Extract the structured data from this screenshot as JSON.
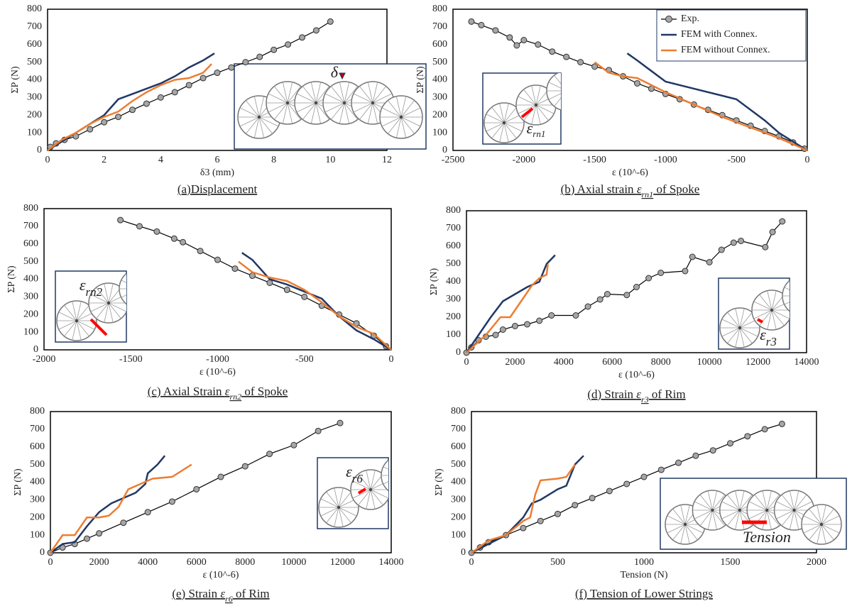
{
  "chart_data": [
    {
      "type": "line",
      "xlabel": "δ3 (mm)",
      "ylabel": "ΣP (N)",
      "caption": {
        "text": "(a)Displacement"
      },
      "inset_label": {
        "symbol": "δ"
      },
      "xlim": [
        0,
        12
      ],
      "xticks": [
        0,
        2,
        4,
        6,
        8,
        10,
        12
      ],
      "ylim": [
        0,
        800
      ],
      "yticks": [
        0,
        100,
        200,
        300,
        400,
        500,
        600,
        700,
        800
      ],
      "series": [
        {
          "color": "#a6a6a6",
          "marker": true,
          "x": [
            0.1,
            0.3,
            0.6,
            1,
            1.5,
            2,
            2.5,
            3,
            3.5,
            4,
            4.5,
            5,
            5.5,
            6,
            6.5,
            7,
            7.5,
            8,
            8.5,
            9,
            9.5,
            10
          ],
          "values": [
            20,
            40,
            60,
            80,
            120,
            160,
            190,
            230,
            265,
            300,
            330,
            370,
            410,
            440,
            470,
            500,
            530,
            570,
            600,
            640,
            680,
            730
          ]
        },
        {
          "color": "#203864",
          "x": [
            0,
            0.5,
            1,
            1.5,
            2,
            2.5,
            3,
            3.5,
            4,
            4.5,
            5,
            5.5,
            5.9
          ],
          "values": [
            0,
            50,
            100,
            150,
            200,
            290,
            320,
            350,
            380,
            420,
            470,
            510,
            550
          ]
        },
        {
          "color": "#ed7d31",
          "x": [
            0,
            0.5,
            1,
            1.5,
            2,
            2.5,
            3,
            3.5,
            4,
            4.5,
            5,
            5.5,
            5.8
          ],
          "values": [
            0,
            60,
            100,
            150,
            190,
            220,
            280,
            330,
            370,
            400,
            410,
            440,
            490
          ]
        }
      ]
    },
    {
      "type": "line",
      "xlabel": "ε (10^-6)",
      "ylabel": "ΣP (N)",
      "caption": {
        "text": "(b) Axial strain ",
        "symbol": "ε",
        "sub": "rn1",
        "tail": " of Spoke"
      },
      "inset_label": {
        "symbol": "ε",
        "sub": "rn1"
      },
      "legend": true,
      "xlim": [
        -2500,
        0
      ],
      "xticks": [
        -2500,
        -2000,
        -1500,
        -1000,
        -500,
        0
      ],
      "ylim": [
        0,
        800
      ],
      "yticks": [
        0,
        100,
        200,
        300,
        400,
        500,
        600,
        700,
        800
      ],
      "series": [
        {
          "name": "Exp.",
          "color": "#a6a6a6",
          "marker": true,
          "x": [
            -2370,
            -2300,
            -2200,
            -2100,
            -2050,
            -2000,
            -1900,
            -1800,
            -1700,
            -1600,
            -1500,
            -1400,
            -1300,
            -1200,
            -1100,
            -1000,
            -900,
            -800,
            -700,
            -600,
            -500,
            -400,
            -300,
            -200,
            -100,
            -20
          ],
          "values": [
            730,
            710,
            680,
            640,
            595,
            625,
            600,
            560,
            530,
            500,
            475,
            455,
            420,
            380,
            350,
            320,
            290,
            260,
            230,
            200,
            170,
            140,
            110,
            80,
            45,
            10
          ]
        },
        {
          "name": "FEM with Connex.",
          "color": "#203864",
          "x": [
            -1270,
            -1200,
            -1100,
            -1000,
            -800,
            -500,
            -300,
            -200,
            0
          ],
          "values": [
            550,
            510,
            450,
            390,
            350,
            290,
            170,
            100,
            0
          ]
        },
        {
          "name": "FEM without  Connex.",
          "color": "#ed7d31",
          "x": [
            -1500,
            -1400,
            -1300,
            -1200,
            -1000,
            -800,
            -600,
            -400,
            -200,
            0
          ],
          "values": [
            500,
            440,
            420,
            410,
            330,
            260,
            190,
            130,
            70,
            0
          ]
        }
      ]
    },
    {
      "type": "line",
      "xlabel": "ε (10^-6)",
      "ylabel": "ΣP (N)",
      "caption": {
        "text": "(c) Axial Strain ",
        "symbol": "ε",
        "sub": "rn2",
        "tail": " of Spoke"
      },
      "inset_label": {
        "symbol": "ε",
        "sub": "rn2"
      },
      "xlim": [
        -2000,
        0
      ],
      "xticks": [
        -2000,
        -1500,
        -1000,
        -500,
        0
      ],
      "ylim": [
        0,
        800
      ],
      "yticks": [
        0,
        100,
        200,
        300,
        400,
        500,
        600,
        700,
        800
      ],
      "series": [
        {
          "color": "#a6a6a6",
          "marker": true,
          "x": [
            -1560,
            -1450,
            -1350,
            -1250,
            -1200,
            -1100,
            -1000,
            -900,
            -800,
            -700,
            -600,
            -500,
            -400,
            -300,
            -200,
            -100,
            -30
          ],
          "values": [
            735,
            700,
            670,
            630,
            610,
            560,
            510,
            460,
            420,
            380,
            340,
            300,
            250,
            200,
            150,
            80,
            20
          ]
        },
        {
          "color": "#203864",
          "x": [
            -860,
            -800,
            -700,
            -600,
            -500,
            -400,
            -300,
            -200,
            -100,
            0
          ],
          "values": [
            550,
            510,
            400,
            370,
            330,
            290,
            190,
            110,
            60,
            0
          ]
        },
        {
          "color": "#ed7d31",
          "x": [
            -880,
            -800,
            -700,
            -600,
            -500,
            -400,
            -300,
            -200,
            -100,
            0
          ],
          "values": [
            500,
            440,
            410,
            390,
            340,
            270,
            190,
            130,
            90,
            0
          ]
        }
      ]
    },
    {
      "type": "line",
      "xlabel": "ε (10^-6)",
      "ylabel": "ΣP (N)",
      "caption": {
        "text": "(d) Strain ",
        "symbol": "ε",
        "sub": "r3",
        "tail": " of Rim"
      },
      "inset_label": {
        "symbol": "ε",
        "sub": "r3"
      },
      "xlim": [
        0,
        14000
      ],
      "xticks": [
        0,
        2000,
        4000,
        6000,
        8000,
        10000,
        12000,
        14000
      ],
      "ylim": [
        0,
        800
      ],
      "yticks": [
        0,
        100,
        200,
        300,
        400,
        500,
        600,
        700,
        800
      ],
      "series": [
        {
          "color": "#a6a6a6",
          "marker": true,
          "x": [
            0,
            200,
            500,
            800,
            1200,
            1500,
            2000,
            2500,
            3000,
            3500,
            4500,
            5000,
            5500,
            5800,
            6600,
            7000,
            7500,
            8000,
            9000,
            9300,
            10000,
            10500,
            11000,
            11300,
            12300,
            12600,
            13000
          ],
          "values": [
            0,
            30,
            70,
            90,
            100,
            130,
            150,
            160,
            180,
            210,
            210,
            260,
            300,
            330,
            325,
            370,
            420,
            450,
            460,
            540,
            510,
            580,
            620,
            630,
            595,
            680,
            740
          ]
        },
        {
          "color": "#203864",
          "x": [
            0,
            500,
            1000,
            1500,
            2000,
            2500,
            3000,
            3300,
            3650
          ],
          "values": [
            0,
            100,
            200,
            290,
            330,
            370,
            400,
            500,
            550
          ]
        },
        {
          "color": "#ed7d31",
          "x": [
            0,
            800,
            1400,
            1800,
            2300,
            2700,
            3000,
            3300,
            3350
          ],
          "values": [
            0,
            100,
            200,
            200,
            300,
            380,
            420,
            440,
            500
          ]
        }
      ]
    },
    {
      "type": "line",
      "xlabel": "ε (10^-6)",
      "ylabel": "ΣP (N)",
      "caption": {
        "text": "(e) Strain ",
        "symbol": "ε",
        "sub": "r6",
        "tail": " of Rim"
      },
      "inset_label": {
        "symbol": "ε",
        "sub": "r6"
      },
      "xlim": [
        0,
        14000
      ],
      "xticks": [
        0,
        2000,
        4000,
        6000,
        8000,
        10000,
        12000,
        14000
      ],
      "ylim": [
        0,
        800
      ],
      "yticks": [
        0,
        100,
        200,
        300,
        400,
        500,
        600,
        700,
        800
      ],
      "series": [
        {
          "color": "#a6a6a6",
          "marker": true,
          "x": [
            0,
            500,
            1000,
            1500,
            2000,
            3000,
            4000,
            5000,
            6000,
            7000,
            8000,
            9000,
            10000,
            11000,
            11900
          ],
          "values": [
            0,
            30,
            50,
            80,
            110,
            170,
            230,
            290,
            360,
            430,
            490,
            560,
            610,
            690,
            735
          ]
        },
        {
          "color": "#203864",
          "x": [
            0,
            500,
            1000,
            1500,
            2000,
            2500,
            3000,
            3500,
            3900,
            4000,
            4400,
            4700
          ],
          "values": [
            0,
            50,
            60,
            150,
            230,
            280,
            310,
            340,
            390,
            450,
            500,
            550
          ]
        },
        {
          "color": "#ed7d31",
          "x": [
            0,
            500,
            1000,
            1500,
            2000,
            2400,
            2800,
            3200,
            3700,
            4200,
            5000,
            5800
          ],
          "values": [
            0,
            100,
            100,
            200,
            200,
            210,
            260,
            360,
            390,
            420,
            430,
            500
          ]
        }
      ]
    },
    {
      "type": "line",
      "xlabel": "Tension (N)",
      "ylabel": "ΣP (N)",
      "caption": {
        "text": "(f) Tension of Lower Strings"
      },
      "inset_label": {
        "text": "Tension"
      },
      "xlim": [
        0,
        2000
      ],
      "xticks": [
        0,
        500,
        1000,
        1500,
        2000
      ],
      "ylim": [
        0,
        800
      ],
      "yticks": [
        0,
        100,
        200,
        300,
        400,
        500,
        600,
        700,
        800
      ],
      "series": [
        {
          "color": "#a6a6a6",
          "marker": true,
          "x": [
            0,
            50,
            100,
            200,
            300,
            400,
            500,
            600,
            700,
            800,
            900,
            1000,
            1100,
            1200,
            1300,
            1400,
            1500,
            1600,
            1700,
            1800
          ],
          "values": [
            0,
            30,
            60,
            100,
            140,
            180,
            220,
            270,
            310,
            350,
            390,
            430,
            470,
            510,
            550,
            580,
            620,
            660,
            700,
            730
          ]
        },
        {
          "color": "#203864",
          "x": [
            0,
            100,
            200,
            300,
            350,
            400,
            450,
            500,
            550,
            600,
            650
          ],
          "values": [
            0,
            50,
            100,
            200,
            280,
            300,
            330,
            360,
            380,
            500,
            550
          ]
        },
        {
          "color": "#ed7d31",
          "x": [
            0,
            100,
            200,
            300,
            340,
            370,
            400,
            500,
            550,
            600
          ],
          "values": [
            0,
            70,
            100,
            180,
            200,
            330,
            410,
            420,
            430,
            500
          ]
        }
      ]
    }
  ]
}
